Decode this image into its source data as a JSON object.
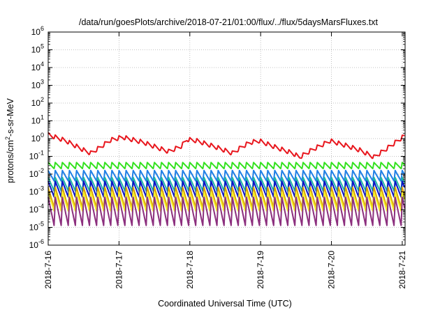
{
  "chart_data": {
    "type": "line",
    "title": "/data/run/goesPlots/archive/2018-07-21/01:00/flux/../flux/5daysMarsFluxes.txt",
    "xlabel": "Coordinated Universal Time (UTC)",
    "ylabel": {
      "base": "protons/cm",
      "sup": "2",
      "rest": "-s-sr-MeV"
    },
    "yscale": "log",
    "ylim": [
      1e-06,
      1000000.0
    ],
    "xlim": [
      "2018-07-16",
      "2018-07-21 01:00"
    ],
    "xrange_days": [
      0,
      5.04
    ],
    "y_ticks": [
      {
        "exp": -6,
        "base": "10",
        "sup": "-6"
      },
      {
        "exp": -5,
        "base": "10",
        "sup": "-5"
      },
      {
        "exp": -4,
        "base": "10",
        "sup": "-4"
      },
      {
        "exp": -3,
        "base": "10",
        "sup": "-3"
      },
      {
        "exp": -2,
        "base": "10",
        "sup": "-2"
      },
      {
        "exp": -1,
        "base": "10",
        "sup": "-1"
      },
      {
        "exp": 0,
        "base": "10",
        "sup": "0"
      },
      {
        "exp": 1,
        "base": "10",
        "sup": "1"
      },
      {
        "exp": 2,
        "base": "10",
        "sup": "2"
      },
      {
        "exp": 3,
        "base": "10",
        "sup": "3"
      },
      {
        "exp": 4,
        "base": "10",
        "sup": "4"
      },
      {
        "exp": 5,
        "base": "10",
        "sup": "5"
      },
      {
        "exp": 6,
        "base": "10",
        "sup": "6"
      }
    ],
    "x_ticks": [
      {
        "day": 0,
        "label": "2018-7-16"
      },
      {
        "day": 1,
        "label": "2018-7-17"
      },
      {
        "day": 2,
        "label": "2018-7-18"
      },
      {
        "day": 3,
        "label": "2018-7-19"
      },
      {
        "day": 4,
        "label": "2018-7-20"
      },
      {
        "day": 5,
        "label": "2018-7-21"
      }
    ],
    "grid": true,
    "series": [
      {
        "color": "#e8161d",
        "kind": "envelope",
        "env": [
          [
            0,
            2.2
          ],
          [
            0.25,
            1.0
          ],
          [
            0.5,
            0.3
          ],
          [
            0.6,
            0.2
          ],
          [
            0.72,
            0.4
          ],
          [
            0.88,
            1.1
          ],
          [
            1.05,
            1.6
          ],
          [
            1.35,
            0.8
          ],
          [
            1.55,
            0.4
          ],
          [
            1.7,
            0.25
          ],
          [
            1.88,
            0.5
          ],
          [
            1.96,
            1.2
          ],
          [
            2.1,
            1.0
          ],
          [
            2.4,
            0.4
          ],
          [
            2.6,
            0.2
          ],
          [
            2.75,
            0.5
          ],
          [
            2.85,
            0.8
          ],
          [
            2.98,
            1.0
          ],
          [
            3.2,
            0.45
          ],
          [
            3.45,
            0.2
          ],
          [
            3.55,
            0.12
          ],
          [
            3.72,
            0.3
          ],
          [
            3.98,
            1.0
          ],
          [
            4.2,
            0.55
          ],
          [
            4.4,
            0.3
          ],
          [
            4.6,
            0.12
          ],
          [
            4.75,
            0.3
          ],
          [
            4.9,
            0.8
          ],
          [
            5.04,
            2.0
          ]
        ],
        "period": 0.1,
        "dip": 0.55
      },
      {
        "color": "#32e11e",
        "kind": "sawtooth",
        "period": 0.1,
        "hi": 0.045,
        "lo": 0.02
      },
      {
        "color": "#1f7fe6",
        "kind": "sawtooth",
        "period": 0.1,
        "hi": 0.016,
        "lo": 0.004
      },
      {
        "color": "#1fb5a6",
        "kind": "sawtooth",
        "period": 0.1,
        "hi": 0.0065,
        "lo": 0.0011
      },
      {
        "color": "#0a14c8",
        "kind": "sawtooth",
        "period": 0.1,
        "hi": 0.004,
        "lo": 0.0005
      },
      {
        "color": "#d9a300",
        "kind": "sawtooth",
        "period": 0.1,
        "hi": 0.0018,
        "lo": 0.00012
      },
      {
        "color": "#f5ee2a",
        "kind": "sawtooth",
        "period": 0.1,
        "hi": 0.001,
        "lo": 8e-05
      },
      {
        "color": "#8c2f7e",
        "kind": "sawtooth",
        "period": 0.1,
        "hi": 0.0005,
        "lo": 1.2e-05
      }
    ]
  }
}
